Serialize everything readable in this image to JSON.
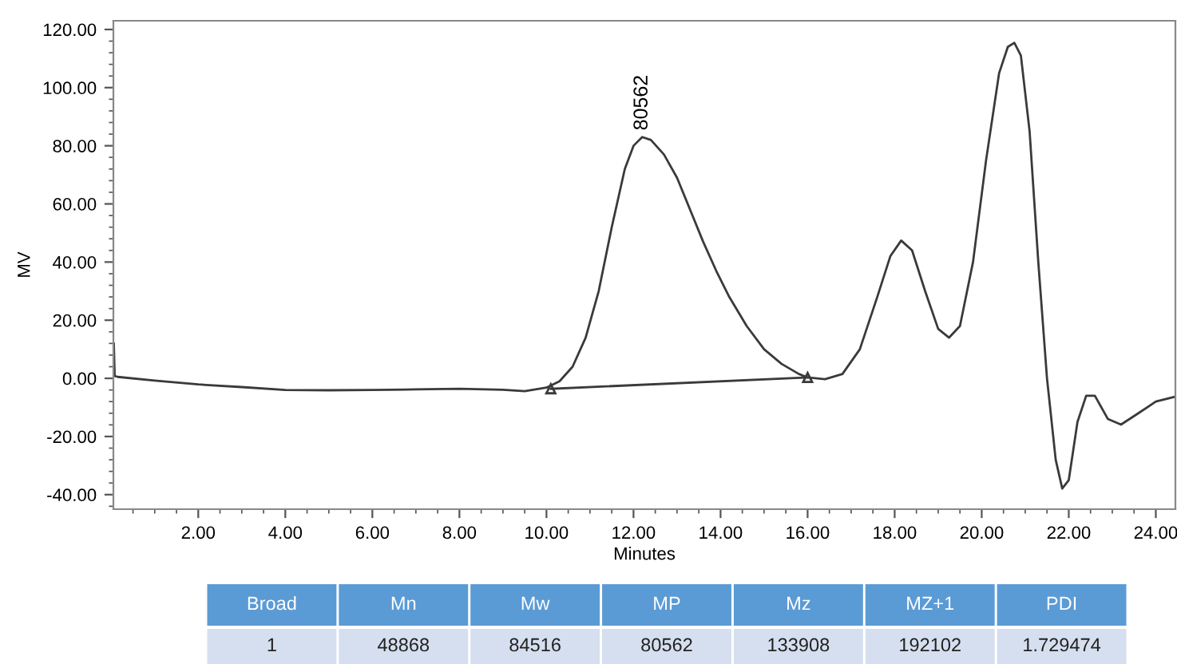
{
  "chart_data": {
    "type": "line",
    "xlabel": "Minutes",
    "ylabel": "MV",
    "xlim": [
      0.05,
      24.45
    ],
    "ylim": [
      -45,
      123
    ],
    "xticks": [
      {
        "value": 2,
        "label": "2.00"
      },
      {
        "value": 4,
        "label": "4.00"
      },
      {
        "value": 6,
        "label": "6.00"
      },
      {
        "value": 8,
        "label": "8.00"
      },
      {
        "value": 10,
        "label": "10.00"
      },
      {
        "value": 12,
        "label": "12.00"
      },
      {
        "value": 14,
        "label": "14.00"
      },
      {
        "value": 16,
        "label": "16.00"
      },
      {
        "value": 18,
        "label": "18.00"
      },
      {
        "value": 20,
        "label": "20.00"
      },
      {
        "value": 22,
        "label": "22.00"
      },
      {
        "value": 24,
        "label": "24.00"
      }
    ],
    "yticks": [
      {
        "value": -40,
        "label": "-40.00"
      },
      {
        "value": -20,
        "label": "-20.00"
      },
      {
        "value": 0,
        "label": "0.00"
      },
      {
        "value": 20,
        "label": "20.00"
      },
      {
        "value": 40,
        "label": "40.00"
      },
      {
        "value": 60,
        "label": "60.00"
      },
      {
        "value": 80,
        "label": "80.00"
      },
      {
        "value": 100,
        "label": "100.00"
      },
      {
        "value": 120,
        "label": "120.00"
      }
    ],
    "grid": false,
    "marker": "none",
    "line_style": "solid",
    "series": [
      {
        "color": "#3a3a3a",
        "x": [
          0.06,
          0.08,
          0.15,
          1.0,
          2.0,
          3.0,
          4.0,
          5.0,
          6.0,
          7.0,
          8.0,
          9.0,
          9.5,
          10.0,
          10.3,
          10.6,
          10.9,
          11.2,
          11.5,
          11.8,
          12.0,
          12.2,
          12.4,
          12.7,
          13.0,
          13.3,
          13.6,
          13.9,
          14.2,
          14.6,
          15.0,
          15.4,
          15.8,
          16.0,
          16.4,
          16.8,
          17.2,
          17.6,
          17.9,
          18.15,
          18.4,
          18.7,
          19.0,
          19.25,
          19.5,
          19.8,
          20.1,
          20.4,
          20.6,
          20.75,
          20.9,
          21.1,
          21.3,
          21.5,
          21.7,
          21.85,
          22.0,
          22.2,
          22.4,
          22.6,
          22.9,
          23.2,
          23.6,
          24.0,
          24.45
        ],
        "values": [
          12,
          0.8,
          0.5,
          -0.8,
          -2.1,
          -3.0,
          -4.0,
          -4.1,
          -4.0,
          -3.8,
          -3.6,
          -3.9,
          -4.4,
          -3.2,
          -1,
          4,
          14,
          30,
          52,
          72,
          80,
          83,
          82,
          77,
          69,
          58,
          47,
          37,
          28,
          18,
          10,
          5,
          1.5,
          0.3,
          -0.3,
          1.5,
          10,
          28,
          42,
          47.4,
          44,
          30,
          17,
          14,
          18,
          40,
          75,
          105,
          114,
          115.4,
          111,
          85,
          40,
          0,
          -28,
          -37.9,
          -35,
          -15,
          -6,
          -6,
          -14,
          -15.9,
          -12,
          -8,
          -6.3
        ]
      },
      {
        "color": "#3a3a3a",
        "marker": "triangle",
        "x": [
          10.1,
          16.0
        ],
        "values": [
          -3.6,
          0.3
        ]
      }
    ],
    "annotations": [
      {
        "text": "80562",
        "x": 12.2,
        "y": 83
      },
      "Broad",
      "Mn",
      "Mw",
      "MP",
      "Mz",
      "MZ+1",
      "PDI",
      "1",
      "48868",
      "84516",
      "80562",
      "133908",
      "192102",
      "1.729474"
    ]
  }
}
